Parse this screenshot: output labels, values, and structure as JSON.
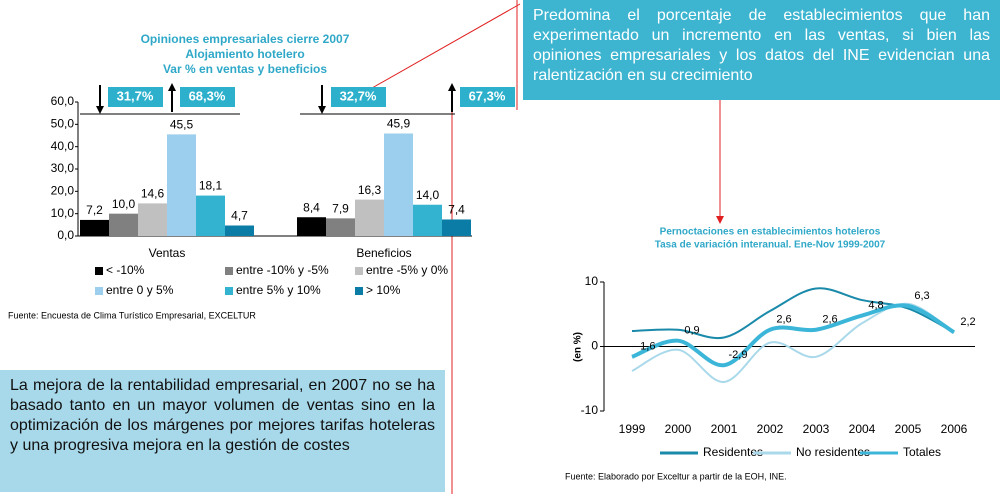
{
  "texts": {
    "top_box": "Predomina el porcentaje de establecimientos que han experimentado un incremento en las ventas, si bien las opiniones empresariales y los datos del INE evidencian una ralentización en su crecimiento",
    "bottom_box": "La mejora de la rentabilidad empresarial, en 2007 no se ha basado tanto en un mayor volumen de ventas sino en la optimización de los márgenes por mejores tarifas hoteleras y una progresiva mejora en la gestión de costes"
  },
  "chart_data": [
    {
      "type": "bar",
      "title": [
        "Opiniones empresariales cierre 2007",
        "Alojamiento hotelero",
        "Var % en ventas y beneficios"
      ],
      "categories": [
        "Ventas",
        "Beneficios"
      ],
      "series": [
        {
          "name": "< -10%",
          "color": "#000000",
          "values": [
            7.2,
            8.4
          ],
          "value_labels": [
            "7,2",
            "8,4"
          ]
        },
        {
          "name": "entre -10% y -5%",
          "color": "#808080",
          "values": [
            10.0,
            7.9
          ],
          "value_labels": [
            "10,0",
            "7,9"
          ]
        },
        {
          "name": "entre -5% y 0%",
          "color": "#c0c0c0",
          "values": [
            14.6,
            16.3
          ],
          "value_labels": [
            "14,6",
            "16,3"
          ]
        },
        {
          "name": "entre 0 y 5%",
          "color": "#9ccfee",
          "values": [
            45.5,
            45.9
          ],
          "value_labels": [
            "45,5",
            "45,9"
          ]
        },
        {
          "name": "entre 5% y 10%",
          "color": "#33b3cf",
          "values": [
            18.1,
            14.0
          ],
          "value_labels": [
            "18,1",
            "14,0"
          ]
        },
        {
          "name": "> 10%",
          "color": "#0b7ca6",
          "values": [
            4.7,
            7.4
          ],
          "value_labels": [
            "4,7",
            "7,4"
          ]
        }
      ],
      "ylim": [
        0,
        60
      ],
      "yticks": [
        {
          "value": 0,
          "label": "0,0"
        },
        {
          "value": 10,
          "label": "10,0"
        },
        {
          "value": 20,
          "label": "20,0"
        },
        {
          "value": 30,
          "label": "30,0"
        },
        {
          "value": 40,
          "label": "40,0"
        },
        {
          "value": 50,
          "label": "50,0"
        },
        {
          "value": 60,
          "label": "60,0"
        }
      ],
      "annotations": [
        "31,7%",
        "68,3%",
        "32,7%",
        "67,3%"
      ],
      "source": "Fuente: Encuesta de Clima Turístico Empresarial, EXCELTUR"
    },
    {
      "type": "line",
      "title": [
        "Pernoctaciones en establecimientos hoteleros",
        "Tasa de variación interanual. Ene-Nov 1999-2007"
      ],
      "y_label": "(en %)",
      "x": [
        1999,
        2000,
        2001,
        2002,
        2003,
        2004,
        2005,
        2006
      ],
      "series": [
        {
          "name": "Residentes",
          "color": "#1a8aaa",
          "values": [
            2.4,
            2.6,
            1.4,
            5.5,
            9.0,
            7.2,
            5.9,
            2.2
          ]
        },
        {
          "name": "No residentes",
          "color": "#a9d9ea",
          "values": [
            -3.8,
            -0.5,
            -5.5,
            0.6,
            -1.6,
            3.6,
            6.6,
            2.2
          ]
        },
        {
          "name": "Totales",
          "color": "#3cb6d8",
          "values": [
            -1.6,
            0.9,
            -2.9,
            2.6,
            2.6,
            4.8,
            6.3,
            2.2
          ],
          "value_labels": [
            "-1,6",
            "0,9",
            "-2,9",
            "2,6",
            "2,6",
            "4,8",
            "6,3",
            "2,2"
          ]
        }
      ],
      "xlim": [
        1999,
        2006
      ],
      "xticks": [
        1999,
        2000,
        2001,
        2002,
        2003,
        2004,
        2005,
        2006
      ],
      "ylim": [
        -10,
        10
      ],
      "yticks": [
        -10,
        0,
        10
      ],
      "source": "Fuente: Elaborado por Exceltur a partir de la EOH, INE."
    }
  ]
}
